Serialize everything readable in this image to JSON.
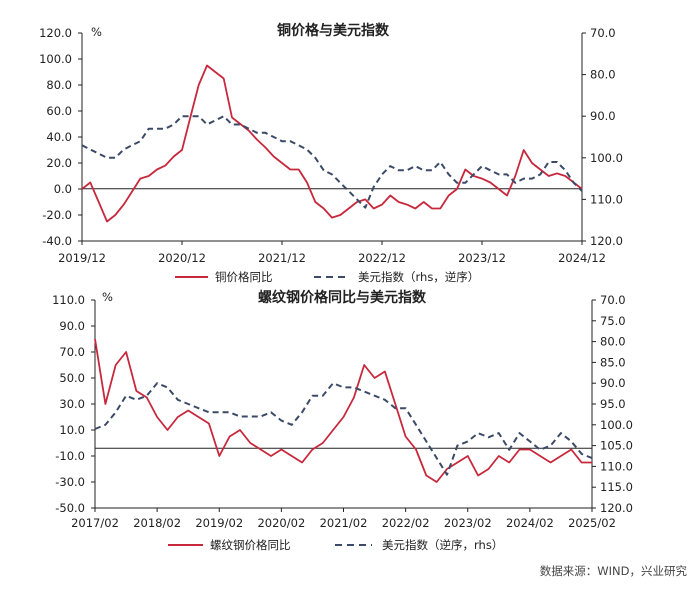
{
  "source_note": "数据来源：WIND，兴业研究",
  "colors": {
    "red": "#c8283c",
    "navy": "#3b4a66",
    "axis": "#222222"
  },
  "chart_data": [
    {
      "type": "line",
      "title": "铜价格与美元指数",
      "left_unit": "%",
      "ylim_left": [
        -40,
        120
      ],
      "ylim_right": [
        120,
        70
      ],
      "right_axis_reversed": true,
      "yticks_left": [
        "120.0",
        "100.0",
        "80.0",
        "60.0",
        "40.0",
        "20.0",
        "0.0",
        "-20.0",
        "-40.0"
      ],
      "yticks_right": [
        "70.0",
        "80.0",
        "90.0",
        "100.0",
        "110.0",
        "120.0"
      ],
      "xticks": [
        "2019/12",
        "2020/12",
        "2021/12",
        "2022/12",
        "2023/12",
        "2024/12"
      ],
      "x_range": [
        "2019-12",
        "2024-12"
      ],
      "grid": false,
      "legend_position": "bottom",
      "series": [
        {
          "name": "铜价格同比",
          "axis": "left",
          "color": "#c8283c",
          "style": "solid",
          "x": [
            "2019-12",
            "2020-01",
            "2020-02",
            "2020-03",
            "2020-04",
            "2020-05",
            "2020-06",
            "2020-07",
            "2020-08",
            "2020-09",
            "2020-10",
            "2020-11",
            "2020-12",
            "2021-01",
            "2021-02",
            "2021-03",
            "2021-04",
            "2021-05",
            "2021-06",
            "2021-07",
            "2021-08",
            "2021-09",
            "2021-10",
            "2021-11",
            "2021-12",
            "2022-01",
            "2022-02",
            "2022-03",
            "2022-04",
            "2022-05",
            "2022-06",
            "2022-07",
            "2022-08",
            "2022-09",
            "2022-10",
            "2022-11",
            "2022-12",
            "2023-01",
            "2023-02",
            "2023-03",
            "2023-04",
            "2023-05",
            "2023-06",
            "2023-07",
            "2023-08",
            "2023-09",
            "2023-10",
            "2023-11",
            "2023-12",
            "2024-01",
            "2024-02",
            "2024-03",
            "2024-04",
            "2024-05",
            "2024-06",
            "2024-07",
            "2024-08",
            "2024-09",
            "2024-10",
            "2024-11",
            "2024-12"
          ],
          "values": [
            0,
            5,
            -10,
            -25,
            -20,
            -12,
            -2,
            8,
            10,
            15,
            18,
            25,
            30,
            55,
            80,
            95,
            90,
            85,
            55,
            50,
            45,
            38,
            32,
            25,
            20,
            15,
            15,
            5,
            -10,
            -15,
            -22,
            -20,
            -15,
            -10,
            -8,
            -15,
            -12,
            -5,
            -10,
            -12,
            -15,
            -10,
            -15,
            -15,
            -5,
            0,
            15,
            10,
            8,
            5,
            0,
            -5,
            10,
            30,
            20,
            15,
            10,
            12,
            10,
            5,
            0
          ]
        },
        {
          "name": "美元指数（rhs，逆序）",
          "axis": "right",
          "color": "#3b4a66",
          "style": "dashed",
          "x": [
            "2019-12",
            "2020-01",
            "2020-02",
            "2020-03",
            "2020-04",
            "2020-05",
            "2020-06",
            "2020-07",
            "2020-08",
            "2020-09",
            "2020-10",
            "2020-11",
            "2020-12",
            "2021-01",
            "2021-02",
            "2021-03",
            "2021-04",
            "2021-05",
            "2021-06",
            "2021-07",
            "2021-08",
            "2021-09",
            "2021-10",
            "2021-11",
            "2021-12",
            "2022-01",
            "2022-02",
            "2022-03",
            "2022-04",
            "2022-05",
            "2022-06",
            "2022-07",
            "2022-08",
            "2022-09",
            "2022-10",
            "2022-11",
            "2022-12",
            "2023-01",
            "2023-02",
            "2023-03",
            "2023-04",
            "2023-05",
            "2023-06",
            "2023-07",
            "2023-08",
            "2023-09",
            "2023-10",
            "2023-11",
            "2023-12",
            "2024-01",
            "2024-02",
            "2024-03",
            "2024-04",
            "2024-05",
            "2024-06",
            "2024-07",
            "2024-08",
            "2024-09",
            "2024-10",
            "2024-11",
            "2024-12"
          ],
          "values": [
            97,
            98,
            99,
            100,
            100,
            98,
            97,
            96,
            93,
            93,
            93,
            92,
            90,
            90,
            90,
            92,
            91,
            90,
            92,
            92,
            93,
            94,
            94,
            95,
            96,
            96,
            97,
            98,
            100,
            103,
            104,
            106,
            108,
            110,
            112,
            107,
            104,
            102,
            103,
            103,
            102,
            103,
            103,
            101,
            104,
            106,
            106,
            104,
            102,
            103,
            104,
            104,
            106,
            105,
            105,
            104,
            101,
            101,
            103,
            106,
            108
          ]
        }
      ]
    },
    {
      "type": "line",
      "title": "螺纹钢价格同比与美元指数",
      "left_unit": "%",
      "ylim_left": [
        -50,
        110
      ],
      "ylim_right": [
        120,
        70
      ],
      "right_axis_reversed": true,
      "yticks_left": [
        "110.0",
        "90.0",
        "70.0",
        "50.0",
        "30.0",
        "10.0",
        "-10.0",
        "-30.0",
        "-50.0"
      ],
      "yticks_right": [
        "70.0",
        "75.0",
        "80.0",
        "85.0",
        "90.0",
        "95.0",
        "100.0",
        "105.0",
        "110.0",
        "115.0",
        "120.0"
      ],
      "xticks": [
        "2017/02",
        "2018/02",
        "2019/02",
        "2020/02",
        "2021/02",
        "2022/02",
        "2023/02",
        "2024/02",
        "2025/02"
      ],
      "x_range": [
        "2017-02",
        "2025-02"
      ],
      "grid": false,
      "legend_position": "bottom",
      "series": [
        {
          "name": "螺纹钢价格同比",
          "axis": "left",
          "color": "#c8283c",
          "style": "solid",
          "x": [
            "2017-02",
            "2017-04",
            "2017-06",
            "2017-08",
            "2017-10",
            "2017-12",
            "2018-02",
            "2018-04",
            "2018-06",
            "2018-08",
            "2018-10",
            "2018-12",
            "2019-02",
            "2019-04",
            "2019-06",
            "2019-08",
            "2019-10",
            "2019-12",
            "2020-02",
            "2020-04",
            "2020-06",
            "2020-08",
            "2020-10",
            "2020-12",
            "2021-02",
            "2021-04",
            "2021-06",
            "2021-08",
            "2021-10",
            "2021-12",
            "2022-02",
            "2022-04",
            "2022-06",
            "2022-08",
            "2022-10",
            "2022-12",
            "2023-02",
            "2023-04",
            "2023-06",
            "2023-08",
            "2023-10",
            "2023-12",
            "2024-02",
            "2024-04",
            "2024-06",
            "2024-08",
            "2024-10",
            "2024-12",
            "2025-02"
          ],
          "values": [
            80,
            30,
            60,
            70,
            40,
            35,
            20,
            10,
            20,
            25,
            20,
            15,
            -10,
            5,
            10,
            0,
            -5,
            -10,
            -5,
            -10,
            -15,
            -5,
            0,
            10,
            20,
            35,
            60,
            50,
            55,
            30,
            5,
            -5,
            -25,
            -30,
            -20,
            -15,
            -10,
            -25,
            -20,
            -10,
            -15,
            -5,
            -5,
            -10,
            -15,
            -10,
            -5,
            -15,
            -15
          ]
        },
        {
          "name": "美元指数（逆序，rhs）",
          "axis": "right",
          "color": "#3b4a66",
          "style": "dashed",
          "x": [
            "2017-02",
            "2017-04",
            "2017-06",
            "2017-08",
            "2017-10",
            "2017-12",
            "2018-02",
            "2018-04",
            "2018-06",
            "2018-08",
            "2018-10",
            "2018-12",
            "2019-02",
            "2019-04",
            "2019-06",
            "2019-08",
            "2019-10",
            "2019-12",
            "2020-02",
            "2020-04",
            "2020-06",
            "2020-08",
            "2020-10",
            "2020-12",
            "2021-02",
            "2021-04",
            "2021-06",
            "2021-08",
            "2021-10",
            "2021-12",
            "2022-02",
            "2022-04",
            "2022-06",
            "2022-08",
            "2022-10",
            "2022-12",
            "2023-02",
            "2023-04",
            "2023-06",
            "2023-08",
            "2023-10",
            "2023-12",
            "2024-02",
            "2024-04",
            "2024-06",
            "2024-08",
            "2024-10",
            "2024-12",
            "2025-02"
          ],
          "values": [
            101,
            100,
            97,
            93,
            94,
            93,
            90,
            91,
            94,
            95,
            96,
            97,
            97,
            97,
            98,
            98,
            98,
            97,
            99,
            100,
            97,
            93,
            93,
            90,
            91,
            91,
            92,
            93,
            94,
            96,
            96,
            100,
            104,
            108,
            112,
            105,
            104,
            102,
            103,
            102,
            106,
            102,
            104,
            106,
            105,
            102,
            104,
            107,
            108
          ]
        }
      ]
    }
  ]
}
